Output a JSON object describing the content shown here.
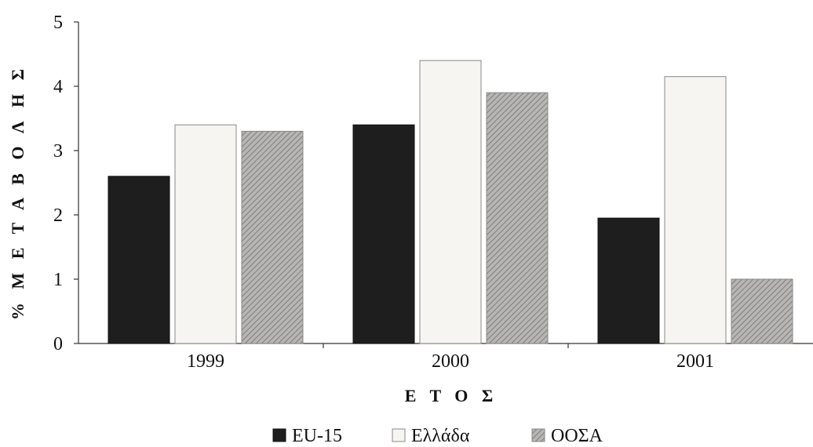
{
  "chart_data": {
    "type": "bar",
    "title": "",
    "xlabel": "Ε Τ Ο Σ",
    "ylabel": "% Μ Ε Τ Α Β Ο Λ Η Σ",
    "categories": [
      "1999",
      "2000",
      "2001"
    ],
    "series": [
      {
        "name": "EU-15",
        "values": [
          2.6,
          3.4,
          1.95
        ]
      },
      {
        "name": "Ελλάδα",
        "values": [
          3.4,
          4.4,
          4.15
        ]
      },
      {
        "name": "ΟΟΣΑ",
        "values": [
          3.3,
          3.9,
          1.0
        ]
      }
    ],
    "ylim": [
      0,
      5
    ],
    "yticks": [
      "0",
      "1",
      "2",
      "3",
      "4",
      "5"
    ],
    "grid": false,
    "legend_position": "bottom"
  },
  "colors": {
    "EU-15": "#1e1e1e",
    "Ελλάδα": "#f7f5f2",
    "ΟΟΣΑ": "#a8a6a4"
  }
}
